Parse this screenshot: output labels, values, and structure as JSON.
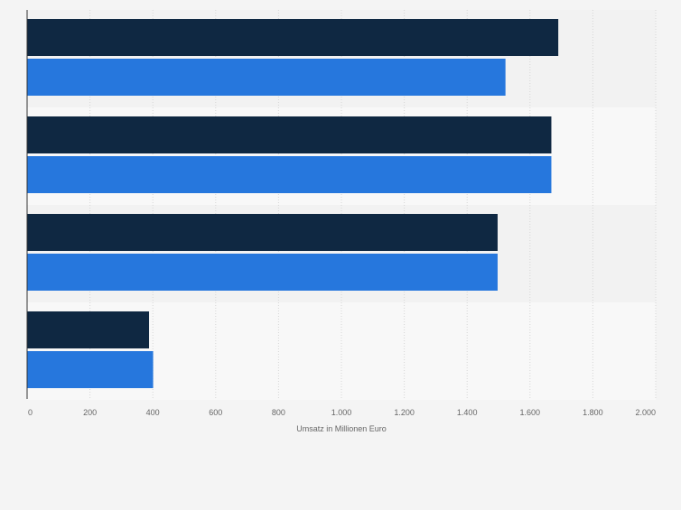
{
  "chart_data": {
    "type": "bar",
    "orientation": "horizontal",
    "categories": [
      "",
      "",
      "",
      ""
    ],
    "series": [
      {
        "values": [
          1690,
          1668,
          1497,
          388
        ],
        "color": "#0f2842"
      },
      {
        "values": [
          1522,
          1668,
          1497,
          401
        ],
        "color": "#2677dd"
      }
    ],
    "xlabel": "Umsatz in Millionen Euro",
    "ylabel": "",
    "xlim": [
      0,
      2000
    ],
    "xticks": [
      0,
      200,
      400,
      600,
      800,
      1000,
      1200,
      1400,
      1600,
      1800,
      2000
    ],
    "xtick_labels": [
      "0",
      "200",
      "400",
      "600",
      "800",
      "1.000",
      "1.200",
      "1.400",
      "1.600",
      "1.800",
      "2.000"
    ],
    "grid": true,
    "legend": "none",
    "colors": {
      "background": "#f4f4f4",
      "band_dark": "#f2f2f2",
      "band_light": "#f8f8f8",
      "gridline": "#d6d6d6",
      "axis": "#333333",
      "tick_text": "#666666"
    }
  }
}
